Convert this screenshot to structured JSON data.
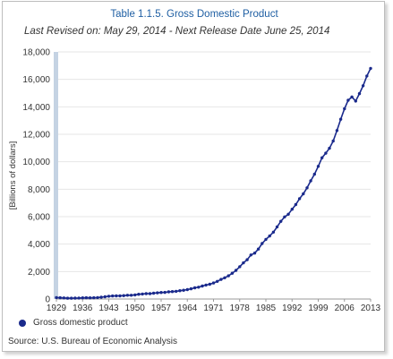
{
  "header": {
    "title": "Table 1.1.5. Gross Domestic Product",
    "subtitle": "Last Revised on: May 29, 2014 - Next Release Date June 25, 2014"
  },
  "legend_label": "Gross domestic product",
  "source": "Source: U.S. Bureau of Economic Analysis",
  "colors": {
    "series": "#1a2a8c",
    "title": "#1f5fa3",
    "axis_band": "#c5d3e3"
  },
  "chart_data": {
    "type": "line",
    "title": "Table 1.1.5. Gross Domestic Product",
    "subtitle": "Last Revised on: May 29, 2014 - Next Release Date June 25, 2014",
    "xlabel": "",
    "ylabel": "[Billions of dollars]",
    "xlim": [
      1929,
      2013
    ],
    "ylim": [
      0,
      18000
    ],
    "x_ticks": [
      "1929",
      "1936",
      "1943",
      "1950",
      "1957",
      "1964",
      "1971",
      "1978",
      "1985",
      "1992",
      "1999",
      "2006",
      "2013"
    ],
    "y_ticks": [
      "0",
      "2,000",
      "4,000",
      "6,000",
      "8,000",
      "10,000",
      "12,000",
      "14,000",
      "16,000",
      "18,000"
    ],
    "grid": true,
    "legend_position": "bottom-left",
    "series": [
      {
        "name": "Gross domestic product",
        "x": [
          1929,
          1930,
          1931,
          1932,
          1933,
          1934,
          1935,
          1936,
          1937,
          1938,
          1939,
          1940,
          1941,
          1942,
          1943,
          1944,
          1945,
          1946,
          1947,
          1948,
          1949,
          1950,
          1951,
          1952,
          1953,
          1954,
          1955,
          1956,
          1957,
          1958,
          1959,
          1960,
          1961,
          1962,
          1963,
          1964,
          1965,
          1966,
          1967,
          1968,
          1969,
          1970,
          1971,
          1972,
          1973,
          1974,
          1975,
          1976,
          1977,
          1978,
          1979,
          1980,
          1981,
          1982,
          1983,
          1984,
          1985,
          1986,
          1987,
          1988,
          1989,
          1990,
          1991,
          1992,
          1993,
          1994,
          1995,
          1996,
          1997,
          1998,
          1999,
          2000,
          2001,
          2002,
          2003,
          2004,
          2005,
          2006,
          2007,
          2008,
          2009,
          2010,
          2011,
          2012,
          2013
        ],
        "values": [
          104.6,
          92.2,
          77.4,
          59.5,
          57.2,
          66.8,
          74.3,
          84.9,
          93.0,
          87.4,
          93.5,
          102.9,
          129.4,
          166.0,
          203.1,
          224.6,
          228.2,
          227.8,
          249.9,
          274.8,
          272.8,
          300.2,
          347.3,
          367.7,
          389.7,
          391.1,
          426.2,
          450.1,
          474.9,
          482.0,
          522.5,
          543.3,
          563.3,
          605.1,
          638.6,
          685.8,
          743.7,
          815.0,
          861.7,
          942.5,
          1019.9,
          1075.9,
          1167.8,
          1282.4,
          1428.5,
          1548.8,
          1688.9,
          1877.6,
          2086.0,
          2356.6,
          2632.1,
          2862.5,
          3211.0,
          3345.0,
          3638.1,
          4040.7,
          4346.7,
          4590.2,
          4870.2,
          5252.6,
          5657.7,
          5979.6,
          6174.0,
          6539.3,
          6878.7,
          7308.8,
          7664.1,
          8100.2,
          8608.5,
          9089.2,
          9665.7,
          10289.7,
          10625.3,
          10980.2,
          11512.2,
          12277.0,
          13095.4,
          13857.9,
          14480.3,
          14720.3,
          14417.9,
          14958.3,
          15533.8,
          16244.6,
          16799.7
        ]
      }
    ]
  }
}
